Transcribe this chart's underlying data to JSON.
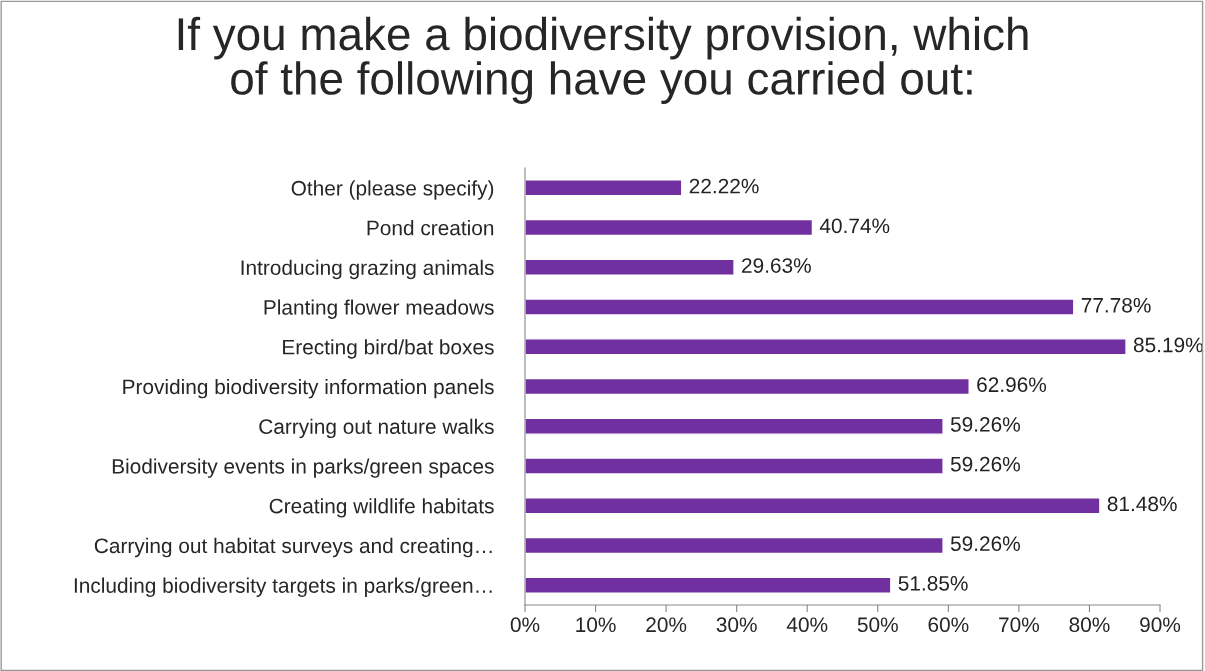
{
  "chart_data": {
    "type": "bar",
    "orientation": "horizontal",
    "title": "If you make a biodiversity provision, which\nof the following have you carried out:",
    "categories": [
      "Other (please specify)",
      "Pond creation",
      "Introducing grazing animals",
      "Planting flower meadows",
      "Erecting bird/bat boxes",
      "Providing biodiversity information panels",
      "Carrying out nature walks",
      "Biodiversity events in parks/green spaces",
      "Creating wildlife habitats",
      "Carrying out habitat surveys and creating…",
      "Including biodiversity targets in parks/green…"
    ],
    "values": [
      22.22,
      40.74,
      29.63,
      77.78,
      85.19,
      62.96,
      59.26,
      59.26,
      81.48,
      59.26,
      51.85
    ],
    "value_labels": [
      "22.22%",
      "40.74%",
      "29.63%",
      "77.78%",
      "85.19%",
      "62.96%",
      "59.26%",
      "59.26%",
      "81.48%",
      "59.26%",
      "51.85%"
    ],
    "color": "#7030a0",
    "xlim": [
      0,
      90
    ],
    "xticks": [
      {
        "value": 0,
        "label": "0%"
      },
      {
        "value": 10,
        "label": "10%"
      },
      {
        "value": 20,
        "label": "20%"
      },
      {
        "value": 30,
        "label": "30%"
      },
      {
        "value": 40,
        "label": "40%"
      },
      {
        "value": 50,
        "label": "50%"
      },
      {
        "value": 60,
        "label": "60%"
      },
      {
        "value": 70,
        "label": "70%"
      },
      {
        "value": 80,
        "label": "80%"
      },
      {
        "value": 90,
        "label": "90%"
      }
    ],
    "grid": false,
    "legend": false
  }
}
